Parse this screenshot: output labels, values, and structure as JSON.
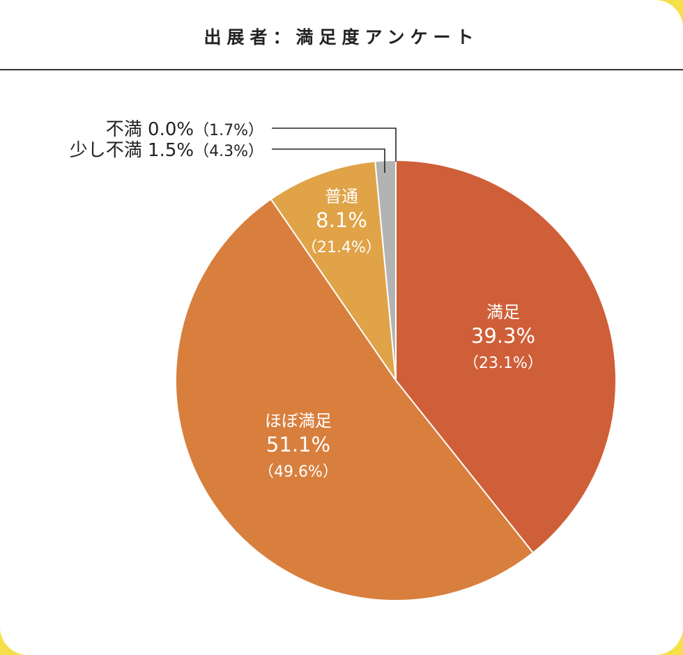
{
  "title": "出展者：満足度アンケート",
  "colors": {
    "background": "#f5e04a",
    "rule": "#333333"
  },
  "chart_data": {
    "type": "pie",
    "title": "出展者：満足度アンケート",
    "start": "top",
    "direction": "clockwise",
    "slices": [
      {
        "label": "満足",
        "value": 39.3,
        "value_text": "39.3%",
        "secondary_text": "（23.1%）",
        "color": "#cf5f38"
      },
      {
        "label": "ほぼ満足",
        "value": 51.1,
        "value_text": "51.1%",
        "secondary_text": "（49.6%）",
        "color": "#d87f3e"
      },
      {
        "label": "普通",
        "value": 8.1,
        "value_text": "8.1%",
        "secondary_text": "（21.4%）",
        "color": "#e0a347"
      },
      {
        "label": "少し不満",
        "value": 1.5,
        "value_text": "1.5%",
        "secondary_text": "（4.3%）",
        "color": "#b3b3b3"
      },
      {
        "label": "不満",
        "value": 0.0,
        "value_text": "0.0%",
        "secondary_text": "（1.7%）",
        "color": "#999999"
      }
    ]
  }
}
